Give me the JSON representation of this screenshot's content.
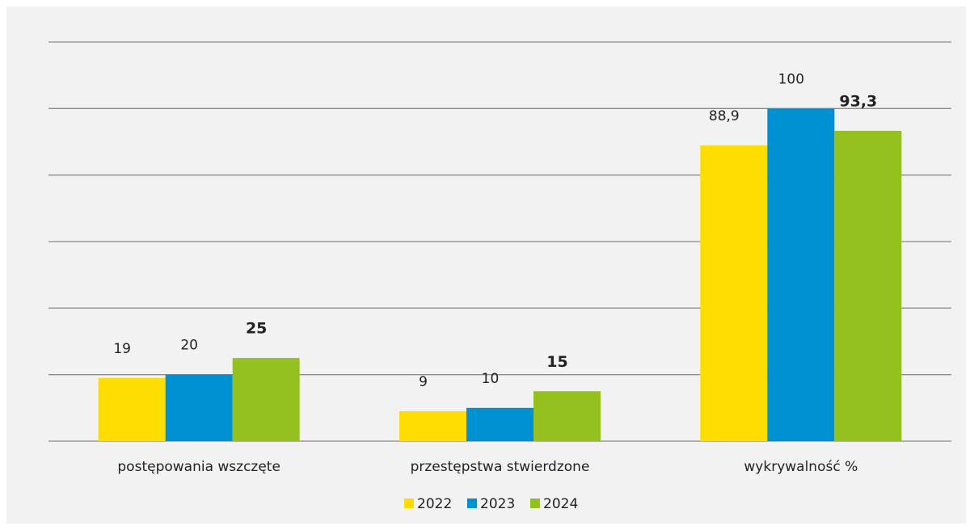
{
  "chart_data": {
    "type": "bar",
    "categories": [
      "postępowania wszczęte",
      "przestępstwa stwierdzone",
      "wykrywalność %"
    ],
    "series": [
      {
        "name": "2022",
        "color": "#ffdd00",
        "values": [
          19,
          9,
          88.9
        ],
        "value_labels": [
          "19",
          "9",
          "88,9"
        ]
      },
      {
        "name": "2023",
        "color": "#0091d2",
        "values": [
          20,
          10,
          100
        ]
      },
      {
        "name": "2024",
        "color": "#95c11f",
        "values": [
          25,
          15,
          93.3
        ],
        "value_labels": [
          "25",
          "15",
          "93,3"
        ]
      }
    ],
    "ylim": [
      0,
      120
    ],
    "yticks": [
      0,
      20,
      40,
      60,
      80,
      100,
      120
    ],
    "grid": true,
    "legend": "bottom"
  }
}
